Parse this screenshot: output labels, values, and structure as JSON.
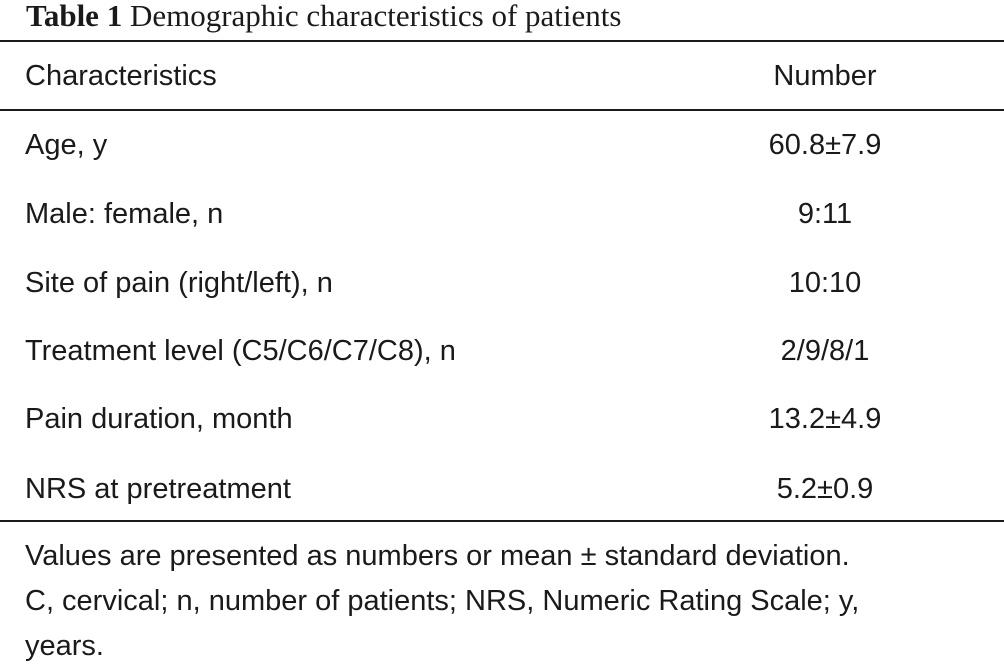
{
  "table": {
    "caption_label": "Table 1",
    "caption_text": "Demographic characteristics of patients",
    "headers": [
      "Characteristics",
      "Number"
    ],
    "rows": [
      [
        "Age, y",
        "60.8±7.9"
      ],
      [
        "Male: female, n",
        "9:11"
      ],
      [
        "Site of pain (right/left), n",
        "10:10"
      ],
      [
        "Treatment level (C5/C6/C7/C8), n",
        "2/9/8/1"
      ],
      [
        "Pain duration, month",
        "13.2±4.9"
      ],
      [
        "NRS at pretreatment",
        "5.2±0.9"
      ]
    ],
    "footnote_lines": [
      "Values are presented as numbers or mean ± standard deviation.",
      "C, cervical; n, number of patients; NRS, Numeric Rating Scale; y,",
      "years."
    ]
  }
}
